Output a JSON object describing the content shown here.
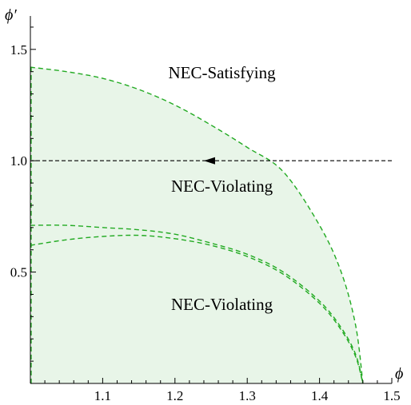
{
  "chart_data": {
    "type": "area",
    "xlabel": "ϕ",
    "ylabel": "ϕ′",
    "xlim": [
      1.0,
      1.5
    ],
    "ylim": [
      0.0,
      1.65
    ],
    "x_ticks": [
      {
        "value": 1.1,
        "label": "1.1"
      },
      {
        "value": 1.2,
        "label": "1.2"
      },
      {
        "value": 1.3,
        "label": "1.3"
      },
      {
        "value": 1.4,
        "label": "1.4"
      },
      {
        "value": 1.5,
        "label": "1.5"
      }
    ],
    "y_ticks": [
      {
        "value": 0.5,
        "label": "0.5"
      },
      {
        "value": 1.0,
        "label": "1.0"
      },
      {
        "value": 1.5,
        "label": "1.5"
      }
    ],
    "region_fill_color": "#e8f5e8",
    "curve_color": "#22aa22",
    "series": [
      {
        "style": "dashed",
        "x": [
          1.0,
          1.05,
          1.1,
          1.15,
          1.2,
          1.25,
          1.3,
          1.35,
          1.4,
          1.43,
          1.45,
          1.46
        ],
        "y": [
          1.42,
          1.4,
          1.37,
          1.32,
          1.25,
          1.16,
          1.06,
          0.95,
          0.71,
          0.5,
          0.26,
          0.0
        ]
      },
      {
        "style": "dashed",
        "x": [
          1.0,
          1.05,
          1.1,
          1.15,
          1.2,
          1.25,
          1.3,
          1.35,
          1.4,
          1.43,
          1.45,
          1.46
        ],
        "y": [
          0.71,
          0.71,
          0.7,
          0.69,
          0.67,
          0.63,
          0.58,
          0.5,
          0.37,
          0.25,
          0.13,
          0.0
        ]
      },
      {
        "style": "dashed",
        "x": [
          1.0,
          1.05,
          1.1,
          1.15,
          1.2,
          1.25,
          1.3,
          1.35,
          1.4,
          1.43,
          1.45,
          1.46
        ],
        "y": [
          0.62,
          0.645,
          0.66,
          0.665,
          0.65,
          0.62,
          0.57,
          0.49,
          0.36,
          0.24,
          0.12,
          0.0
        ]
      }
    ],
    "trajectory": {
      "y": 1.0,
      "x_start": 1.5,
      "x_end": 1.0,
      "arrow_at_x": 1.24,
      "direction": "left",
      "style": "dashed",
      "color": "#000000"
    },
    "annotations": [
      {
        "text": "NEC-Satisfying",
        "x": 1.265,
        "y": 1.37
      },
      {
        "text": "NEC-Violating",
        "x": 1.265,
        "y": 0.86
      },
      {
        "text": "NEC-Violating",
        "x": 1.265,
        "y": 0.33
      }
    ]
  }
}
